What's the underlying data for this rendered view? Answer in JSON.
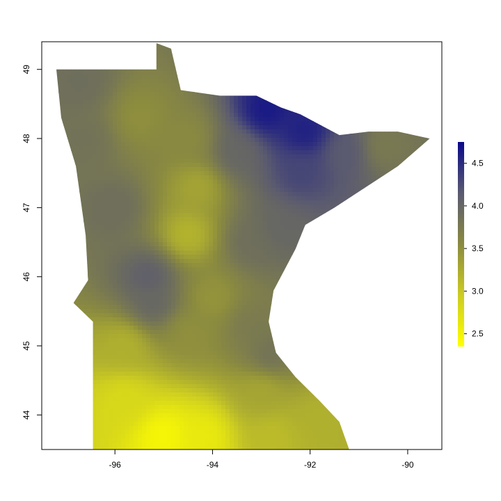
{
  "chart_data": {
    "type": "heatmap",
    "title": "",
    "xlabel": "",
    "ylabel": "",
    "xlim": [
      -97.5,
      -89.3
    ],
    "ylim": [
      43.5,
      49.4
    ],
    "x_ticks": [
      -96,
      -94,
      -92,
      -90
    ],
    "x_tick_labels": [
      "-96",
      "-94",
      "-92",
      "-90"
    ],
    "y_ticks": [
      44,
      45,
      46,
      47,
      48,
      49
    ],
    "y_tick_labels": [
      "44",
      "45",
      "46",
      "47",
      "48",
      "49"
    ],
    "colorbar": {
      "range": [
        2.35,
        4.75
      ],
      "ticks": [
        2.5,
        3.0,
        3.5,
        4.0,
        4.5
      ],
      "tick_labels": [
        "2.5",
        "3.0",
        "3.5",
        "4.0",
        "4.5"
      ],
      "colors": [
        "#ffff00",
        "#cccc22",
        "#8a8a40",
        "#5a5a70",
        "#0a0a8a"
      ]
    },
    "region_outline": [
      [
        -97.2,
        49.0
      ],
      [
        -95.15,
        49.0
      ],
      [
        -95.15,
        49.38
      ],
      [
        -94.85,
        49.3
      ],
      [
        -94.65,
        48.7
      ],
      [
        -93.85,
        48.62
      ],
      [
        -93.1,
        48.62
      ],
      [
        -92.6,
        48.45
      ],
      [
        -92.2,
        48.35
      ],
      [
        -91.4,
        48.05
      ],
      [
        -90.8,
        48.1
      ],
      [
        -90.2,
        48.1
      ],
      [
        -89.55,
        48.0
      ],
      [
        -90.2,
        47.6
      ],
      [
        -91.5,
        47.0
      ],
      [
        -92.1,
        46.75
      ],
      [
        -92.3,
        46.4
      ],
      [
        -92.75,
        45.8
      ],
      [
        -92.85,
        45.35
      ],
      [
        -92.7,
        44.9
      ],
      [
        -92.3,
        44.55
      ],
      [
        -91.8,
        44.2
      ],
      [
        -91.4,
        43.9
      ],
      [
        -91.2,
        43.5
      ],
      [
        -96.45,
        43.5
      ],
      [
        -96.45,
        45.35
      ],
      [
        -96.85,
        45.62
      ],
      [
        -96.55,
        45.95
      ],
      [
        -96.6,
        46.6
      ],
      [
        -96.8,
        47.6
      ],
      [
        -97.1,
        48.3
      ]
    ],
    "value_anchors": [
      {
        "lon": -92.9,
        "lat": 48.4,
        "value": 4.65
      },
      {
        "lon": -92.1,
        "lat": 48.1,
        "value": 4.6
      },
      {
        "lon": -92.2,
        "lat": 47.5,
        "value": 4.3
      },
      {
        "lon": -91.3,
        "lat": 47.8,
        "value": 4.15
      },
      {
        "lon": -93.5,
        "lat": 47.8,
        "value": 4.0
      },
      {
        "lon": -90.5,
        "lat": 47.9,
        "value": 3.75
      },
      {
        "lon": -96.7,
        "lat": 48.8,
        "value": 3.9
      },
      {
        "lon": -96.6,
        "lat": 48.0,
        "value": 3.85
      },
      {
        "lon": -96.0,
        "lat": 47.0,
        "value": 3.9
      },
      {
        "lon": -95.3,
        "lat": 46.0,
        "value": 4.1
      },
      {
        "lon": -95.2,
        "lat": 45.6,
        "value": 4.0
      },
      {
        "lon": -95.5,
        "lat": 48.3,
        "value": 3.5
      },
      {
        "lon": -94.5,
        "lat": 48.0,
        "value": 3.55
      },
      {
        "lon": -94.3,
        "lat": 47.3,
        "value": 3.3
      },
      {
        "lon": -94.5,
        "lat": 46.6,
        "value": 3.15
      },
      {
        "lon": -93.2,
        "lat": 46.5,
        "value": 3.9
      },
      {
        "lon": -92.6,
        "lat": 46.7,
        "value": 4.0
      },
      {
        "lon": -94.0,
        "lat": 45.7,
        "value": 3.45
      },
      {
        "lon": -93.2,
        "lat": 45.3,
        "value": 3.75
      },
      {
        "lon": -92.8,
        "lat": 44.9,
        "value": 3.85
      },
      {
        "lon": -94.5,
        "lat": 45.2,
        "value": 3.5
      },
      {
        "lon": -95.8,
        "lat": 45.0,
        "value": 3.2
      },
      {
        "lon": -93.0,
        "lat": 44.3,
        "value": 3.3
      },
      {
        "lon": -91.8,
        "lat": 43.9,
        "value": 3.2
      },
      {
        "lon": -95.8,
        "lat": 44.2,
        "value": 2.8
      },
      {
        "lon": -95.0,
        "lat": 43.7,
        "value": 2.45
      },
      {
        "lon": -94.2,
        "lat": 43.7,
        "value": 2.6
      },
      {
        "lon": -92.8,
        "lat": 43.7,
        "value": 3.1
      }
    ]
  }
}
